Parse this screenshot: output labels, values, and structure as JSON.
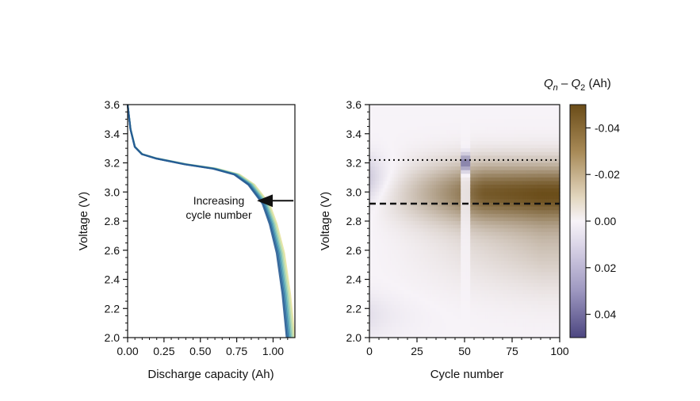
{
  "chart_data": [
    {
      "type": "line",
      "panel": "left",
      "xlabel": "Discharge capacity (Ah)",
      "ylabel": "Voltage (V)",
      "xlim": [
        0.0,
        1.15
      ],
      "ylim": [
        2.0,
        3.6
      ],
      "xticks": [
        0.0,
        0.25,
        0.5,
        0.75,
        1.0
      ],
      "xtick_labels": [
        "0.00",
        "0.25",
        "0.50",
        "0.75",
        "1.00"
      ],
      "yticks": [
        2.0,
        2.2,
        2.4,
        2.6,
        2.8,
        3.0,
        3.2,
        3.4,
        3.6
      ],
      "ytick_labels": [
        "2.0",
        "2.2",
        "2.4",
        "2.6",
        "2.8",
        "3.0",
        "3.2",
        "3.4",
        "3.6"
      ],
      "grid": false,
      "base_curve": {
        "capacity": [
          0.0,
          0.02,
          0.05,
          0.1,
          0.2,
          0.4,
          0.6,
          0.75,
          0.85,
          0.95,
          1.0,
          1.05,
          1.09,
          1.11,
          1.12
        ],
        "voltage": [
          3.6,
          3.43,
          3.31,
          3.26,
          3.23,
          3.19,
          3.16,
          3.12,
          3.05,
          2.92,
          2.78,
          2.58,
          2.3,
          2.1,
          2.0
        ]
      },
      "series_count": 8,
      "series_capacity_scale": [
        1.025,
        1.018,
        1.011,
        1.004,
        0.997,
        0.99,
        0.983,
        0.976
      ],
      "series_colors": [
        "#e7e39f",
        "#cde2a6",
        "#a9d4ae",
        "#7fc0b5",
        "#58a8b5",
        "#3f8aad",
        "#2f6ea0",
        "#255890"
      ],
      "annotation": {
        "text_lines": [
          "Increasing",
          "cycle number"
        ],
        "arrow_from": [
          1.14,
          2.94
        ],
        "arrow_to": [
          0.9,
          2.94
        ]
      }
    },
    {
      "type": "heatmap",
      "panel": "right",
      "xlabel": "Cycle number",
      "ylabel": "Voltage (V)",
      "xlim": [
        0,
        100
      ],
      "ylim": [
        2.0,
        3.6
      ],
      "xticks": [
        0,
        25,
        50,
        75,
        100
      ],
      "xtick_labels": [
        "0",
        "25",
        "50",
        "75",
        "100"
      ],
      "yticks": [
        2.0,
        2.2,
        2.4,
        2.6,
        2.8,
        3.0,
        3.2,
        3.4,
        3.6
      ],
      "ytick_labels": [
        "2.0",
        "2.2",
        "2.4",
        "2.6",
        "2.8",
        "3.0",
        "3.2",
        "3.4",
        "3.6"
      ],
      "value_label_parts": {
        "q": "Q",
        "n": "n",
        "dash": " – ",
        "two": "2",
        "unit": " (Ah)"
      },
      "colorbar": {
        "range": [
          0.05,
          -0.05
        ],
        "ticks": [
          -0.04,
          -0.02,
          0.0,
          0.02,
          0.04
        ],
        "tick_labels": [
          "-0.04",
          "-0.02",
          "0.00",
          "0.02",
          "0.04"
        ],
        "color_negative": "#6a4c18",
        "color_zero": "#f7f3f8",
        "color_positive": "#4c4680"
      },
      "reference_lines": [
        {
          "voltage": 3.22,
          "style": "dotted"
        },
        {
          "voltage": 2.92,
          "style": "dashed"
        }
      ]
    }
  ]
}
